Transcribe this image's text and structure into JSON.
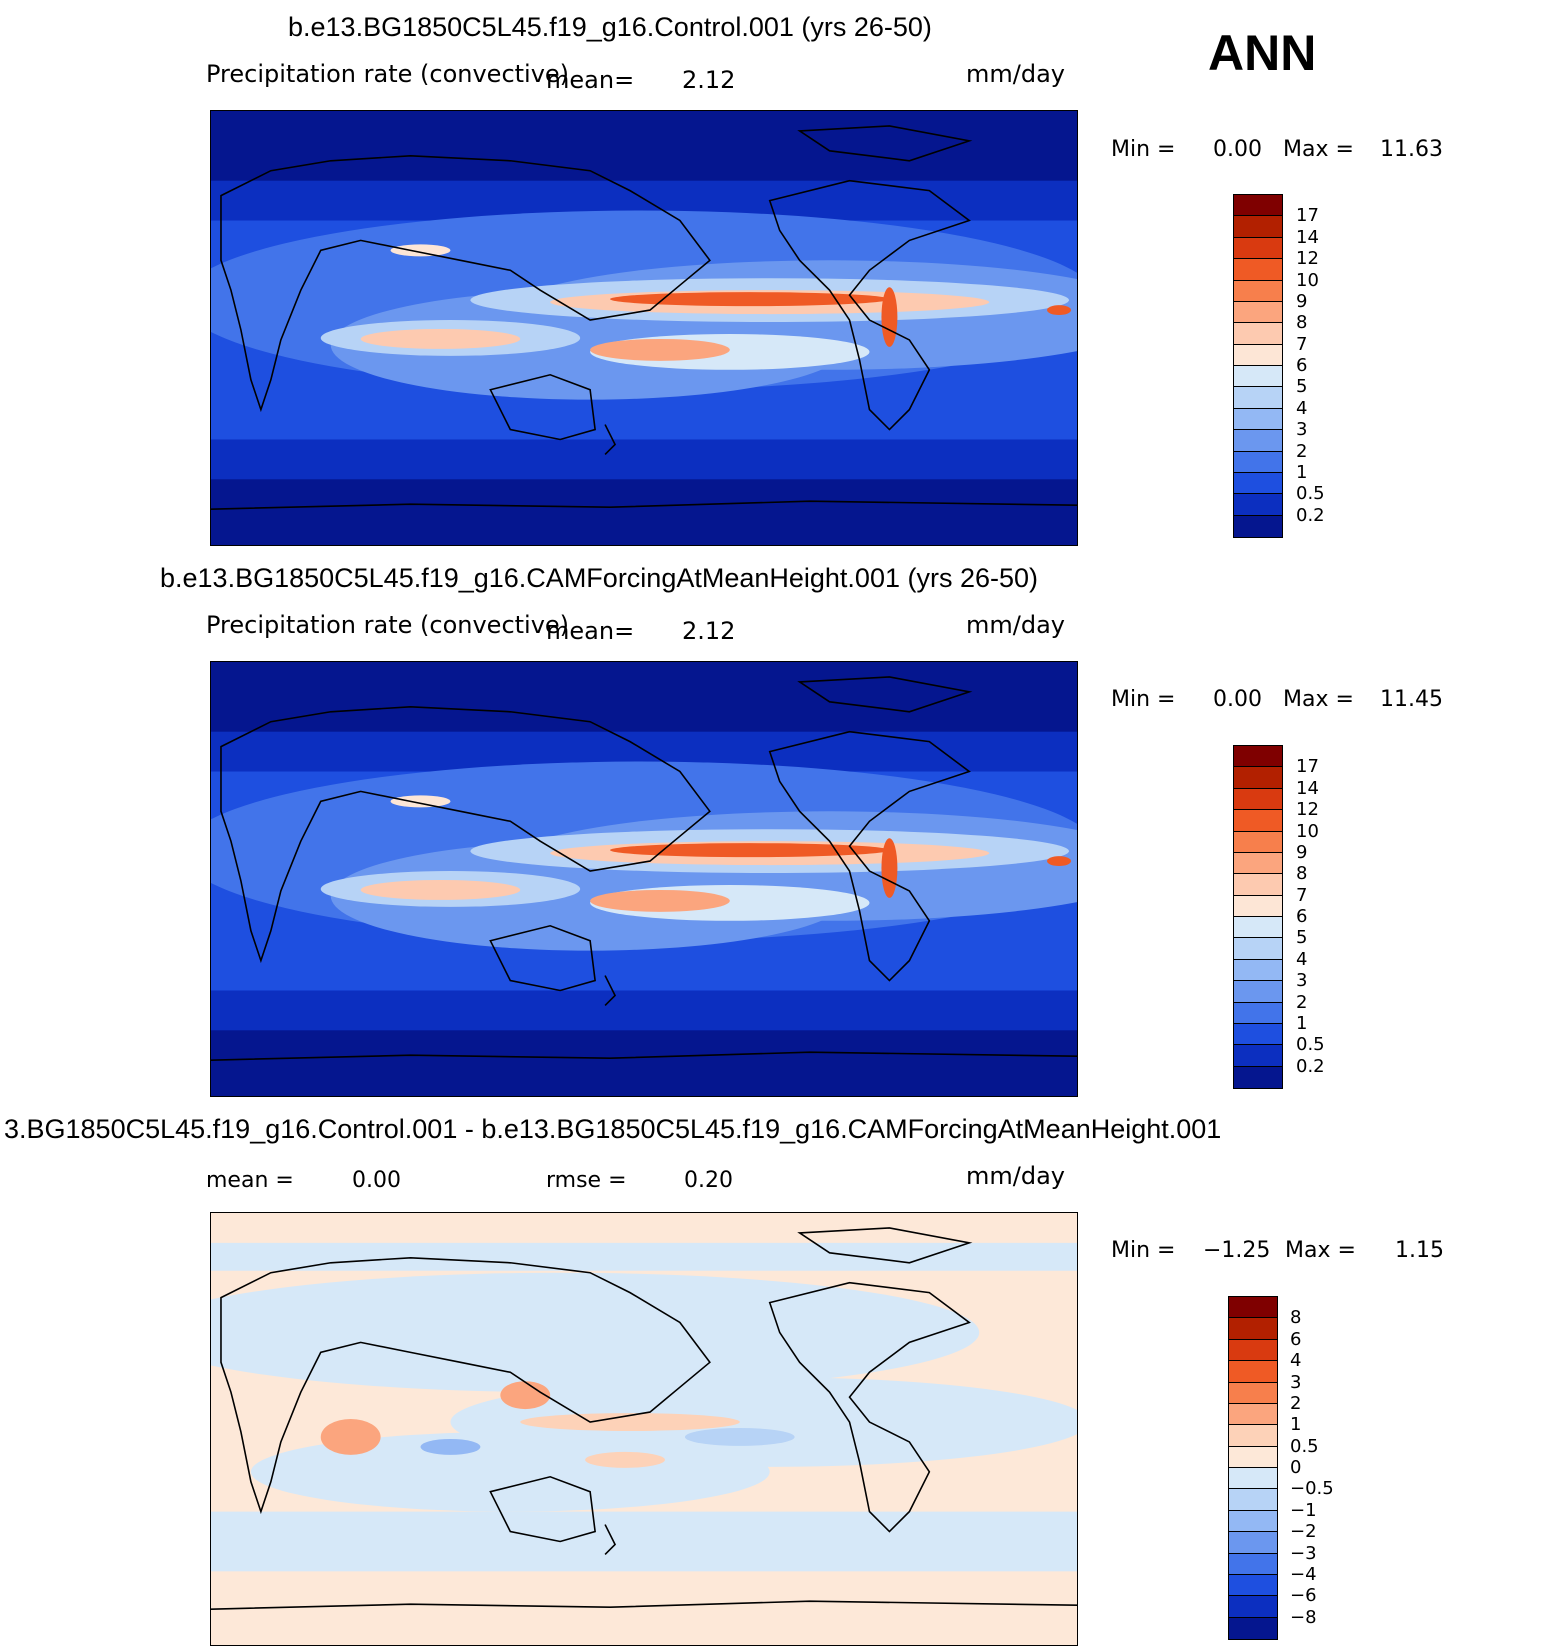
{
  "header": {
    "season": "ANN"
  },
  "panels": [
    {
      "title": "b.e13.BG1850C5L45.f19_g16.Control.001 (yrs 26-50)",
      "variable": "Precipitation rate (convective)",
      "mean_label": "mean=",
      "mean_value": "2.12",
      "units": "mm/day",
      "min_label": "Min =",
      "min_value": "0.00",
      "max_label": "Max =",
      "max_value": "11.63",
      "colorbar_levels": [
        "17",
        "14",
        "12",
        "10",
        "9",
        "8",
        "7",
        "6",
        "5",
        "4",
        "3",
        "2",
        "1",
        "0.5",
        "0.2"
      ]
    },
    {
      "title": "b.e13.BG1850C5L45.f19_g16.CAMForcingAtMeanHeight.001 (yrs 26-50)",
      "variable": "Precipitation rate (convective)",
      "mean_label": "mean=",
      "mean_value": "2.12",
      "units": "mm/day",
      "min_label": "Min =",
      "min_value": "0.00",
      "max_label": "Max =",
      "max_value": "11.45",
      "colorbar_levels": [
        "17",
        "14",
        "12",
        "10",
        "9",
        "8",
        "7",
        "6",
        "5",
        "4",
        "3",
        "2",
        "1",
        "0.5",
        "0.2"
      ]
    },
    {
      "title": "3.BG1850C5L45.f19_g16.Control.001 - b.e13.BG1850C5L45.f19_g16.CAMForcingAtMeanHeight.001",
      "mean_label": "mean =",
      "mean_value": "0.00",
      "rmse_label": "rmse =",
      "rmse_value": "0.20",
      "units": "mm/day",
      "min_label": "Min =",
      "min_value": "−1.25",
      "max_label": "Max =",
      "max_value": "1.15",
      "colorbar_levels": [
        "8",
        "6",
        "4",
        "3",
        "2",
        "1",
        "0.5",
        "0",
        "−0.5",
        "−1",
        "−2",
        "−3",
        "−4",
        "−6",
        "−8"
      ]
    }
  ],
  "colors": {
    "precip_scale": [
      "#7f0000",
      "#b22000",
      "#d93a10",
      "#ef5a25",
      "#f77f4c",
      "#fba57e",
      "#fdcab0",
      "#fde6d6",
      "#d6e8f8",
      "#b7d3f6",
      "#93b8f4",
      "#6b97ef",
      "#4274ea",
      "#1e4fe0",
      "#0c2fc0",
      "#05168f"
    ],
    "diff_scale": [
      "#7f0000",
      "#b22000",
      "#d93a10",
      "#ef5a25",
      "#f77f4c",
      "#fba57e",
      "#fdd2b8",
      "#fde8d8",
      "#d6e8f8",
      "#b7d3f6",
      "#93b8f4",
      "#6b97ef",
      "#4274ea",
      "#1e4fe0",
      "#0c2fc0",
      "#05168f"
    ]
  }
}
